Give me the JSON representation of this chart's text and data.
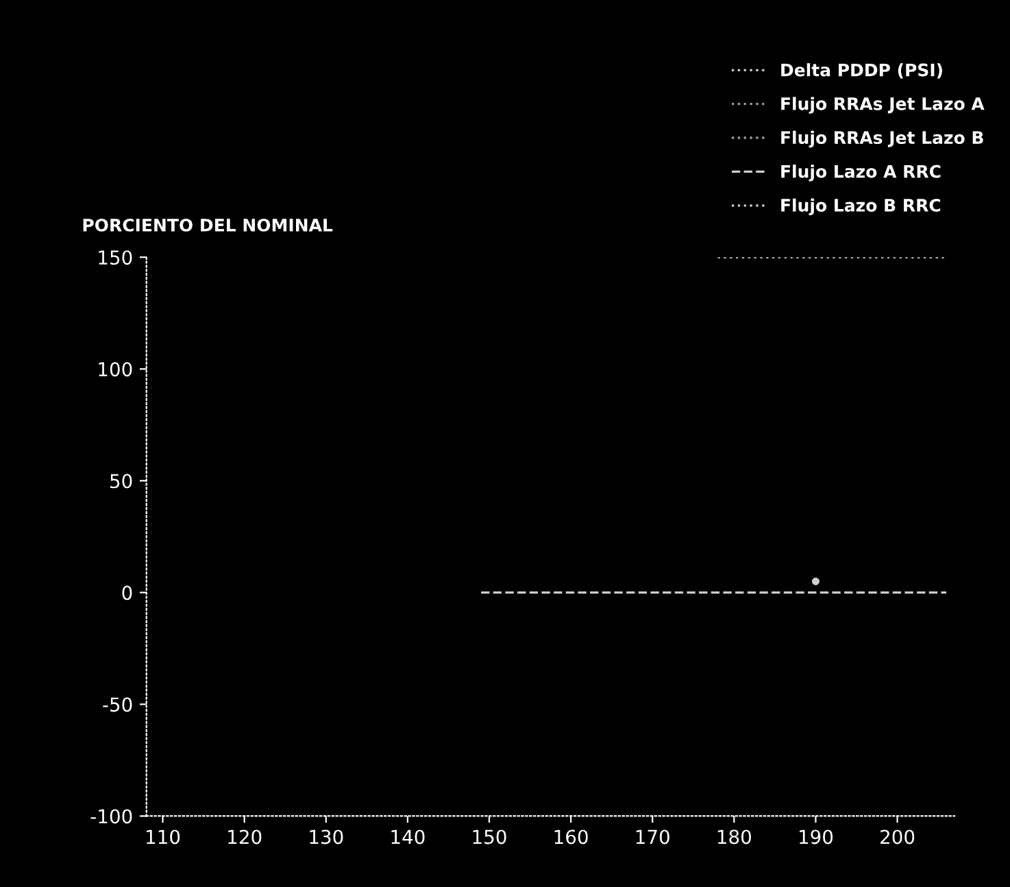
{
  "chart_data": {
    "type": "line",
    "ylabel": "PORCIENTO DEL NOMINAL",
    "xlim": [
      108,
      207
    ],
    "xticks": [
      110,
      120,
      130,
      140,
      150,
      160,
      170,
      180,
      190,
      200
    ],
    "ylim": [
      -100,
      150
    ],
    "yticks": [
      -100,
      -50,
      0,
      50,
      100,
      150
    ],
    "grid": false,
    "legend": "top right",
    "marker": "none",
    "series": [
      {
        "name": "Delta PDDP (PSI)",
        "color": "#cccccc",
        "line_style": "dotted",
        "x": [
          190
        ],
        "values": [
          5
        ],
        "marker": "circle"
      },
      {
        "name": "Flujo RRAs Jet Lazo A",
        "color": "#999999",
        "line_style": "dotted"
      },
      {
        "name": "Flujo RRAs Jet Lazo B",
        "color": "#999999",
        "line_style": "dotted"
      },
      {
        "name": "Flujo Lazo A RRC",
        "color": "#cccccc",
        "line_style": "dashed",
        "x": [
          149,
          160,
          170,
          180,
          190,
          200,
          206
        ],
        "values": [
          0,
          0,
          0,
          0,
          0,
          0,
          0
        ]
      },
      {
        "name": "Flujo Lazo B RRC",
        "color": "#cccccc",
        "line_style": "dotted",
        "x": [
          178,
          190,
          200,
          206
        ],
        "values": [
          150,
          150,
          150,
          150
        ]
      }
    ]
  }
}
